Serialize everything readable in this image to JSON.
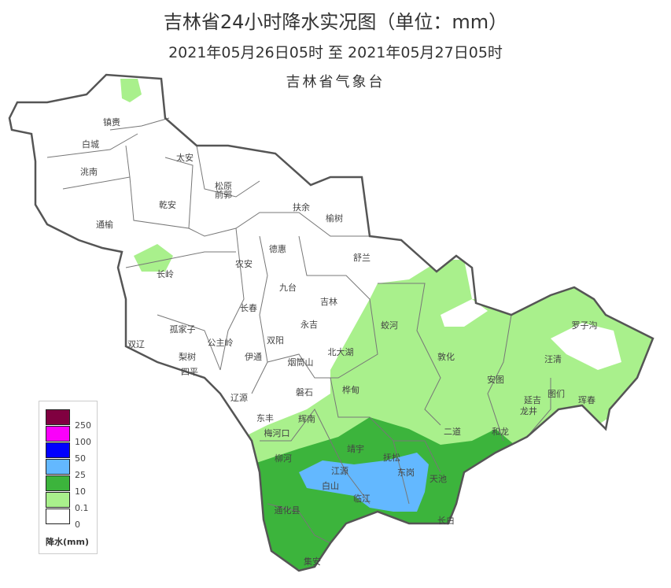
{
  "title": "吉林省24小时降水实况图（单位：mm）",
  "subtitle": "2021年05月26日05时  至  2021年05月27日05时",
  "issuer": "吉林省气象台",
  "colors": {
    "none": "#ffffff",
    "light": "#a9f08c",
    "moderate": "#3cb43c",
    "heavy": "#63b8ff",
    "rainstorm": "#0000fe",
    "big_rainstorm": "#fa00fa",
    "extreme": "#800040"
  },
  "legend": {
    "title": "降水(mm)",
    "levels": [
      "250",
      "100",
      "50",
      "25",
      "10",
      "0.1",
      "0"
    ],
    "swatches": [
      "#800040",
      "#fa00fa",
      "#0000fe",
      "#63b8ff",
      "#3cb43c",
      "#a9f08c",
      "#ffffff"
    ]
  },
  "places": [
    "镇赉",
    "白城",
    "洮南",
    "太安",
    "松原",
    "前郭",
    "乾安",
    "通榆",
    "扶余",
    "榆树",
    "德惠",
    "农安",
    "舒兰",
    "长岭",
    "九台",
    "吉林",
    "长春",
    "蛟河",
    "永吉",
    "罗子沟",
    "孤家子",
    "双辽",
    "公主岭",
    "双阳",
    "北大湖",
    "敦化",
    "汪清",
    "梨树",
    "伊通",
    "烟筒山",
    "四平",
    "安图",
    "延吉",
    "图们",
    "桦甸",
    "磐石",
    "辽源",
    "龙井",
    "珲春",
    "东丰",
    "辉南",
    "梅河口",
    "二道",
    "和龙",
    "靖宇",
    "柳河",
    "抚松",
    "江源",
    "东岗",
    "天池",
    "白山",
    "临江",
    "通化县",
    "长白",
    "集安"
  ]
}
